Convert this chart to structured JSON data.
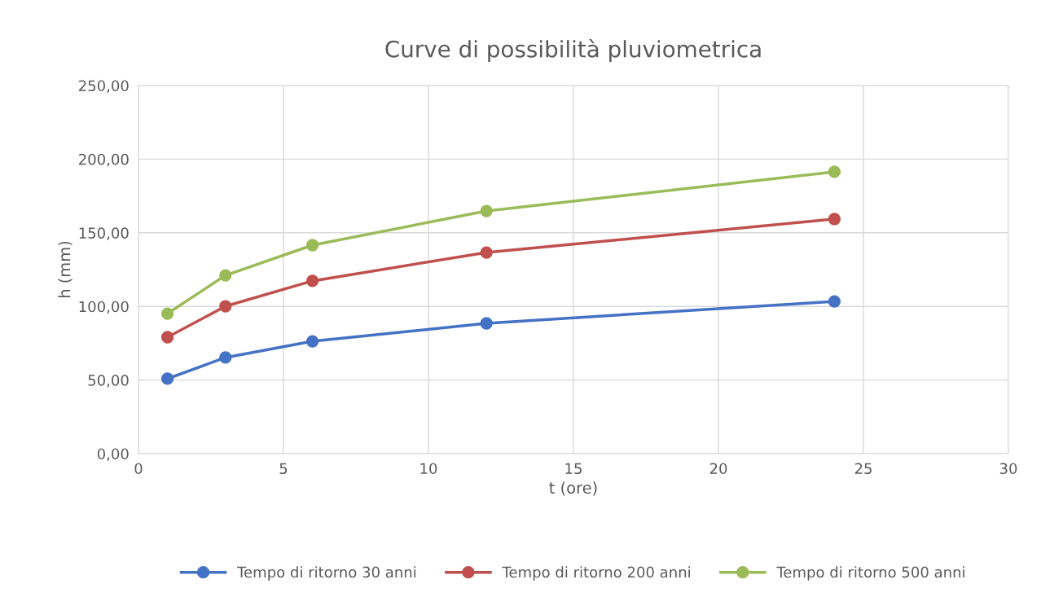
{
  "chart_data": {
    "type": "line",
    "title": "Curve di possibilità pluviometrica",
    "xlabel": "t (ore)",
    "ylabel": "h (mm)",
    "x": [
      1,
      3,
      6,
      12,
      24
    ],
    "series": [
      {
        "name": "Tempo di ritorno 30 anni",
        "color": "#4472c4",
        "values": [
          50.9,
          65.3,
          76.3,
          88.5,
          103.4
        ]
      },
      {
        "name": "Tempo di ritorno 200 anni",
        "color": "#c0504d",
        "values": [
          79.1,
          100.1,
          117.3,
          136.6,
          159.3
        ]
      },
      {
        "name": "Tempo di ritorno 500 anni",
        "color": "#9bbb59",
        "values": [
          95.1,
          121.1,
          141.6,
          164.8,
          191.4
        ]
      }
    ],
    "xlim": [
      0,
      30
    ],
    "xticks": [
      0,
      5,
      10,
      15,
      20,
      25,
      30
    ],
    "ylim": [
      0,
      250
    ],
    "yticks": [
      {
        "value": 0,
        "label": "0,00"
      },
      {
        "value": 50,
        "label": "50,00"
      },
      {
        "value": 100,
        "label": "100,00"
      },
      {
        "value": 150,
        "label": "150,00"
      },
      {
        "value": 200,
        "label": "200,00"
      },
      {
        "value": 250,
        "label": "250,00"
      }
    ],
    "grid": true,
    "legend": "bottom",
    "marker": "circle",
    "line_style": "solid"
  }
}
